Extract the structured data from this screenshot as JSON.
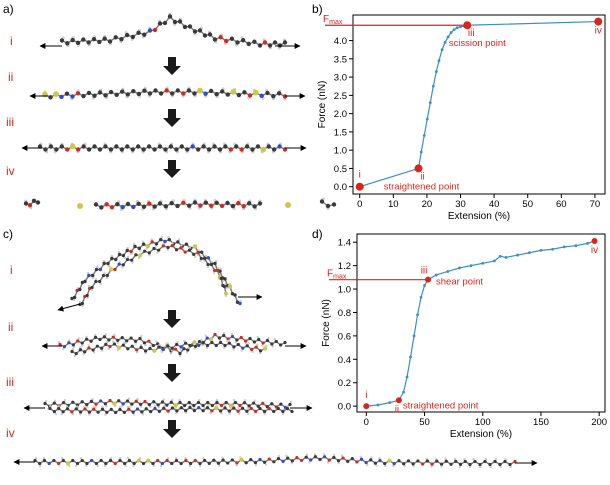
{
  "panels": {
    "a": "a)",
    "b": "b)",
    "c": "c)",
    "d": "d)"
  },
  "steps": [
    "i",
    "ii",
    "iii",
    "iv"
  ],
  "colors": {
    "carbon": "#3a3a3a",
    "hydrogen": "#d8d8d8",
    "oxygen": "#d22a1e",
    "nitrogen": "#2f4bd0",
    "sulfur": "#c9c94a",
    "curve": "#3b8ec6",
    "annotation": "#d9261c",
    "arrow_fill": "#1a1a1a"
  },
  "chart_data": [
    {
      "id": "b",
      "type": "line",
      "title": "",
      "xlabel": "Extension (%)",
      "ylabel": "Force (nN)",
      "xlim": [
        -2,
        73
      ],
      "ylim": [
        -0.2,
        4.7
      ],
      "xticks": [
        0,
        10,
        20,
        30,
        40,
        50,
        60,
        70
      ],
      "yticks": [
        0.0,
        0.5,
        1.0,
        1.5,
        2.0,
        2.5,
        3.0,
        3.5,
        4.0
      ],
      "x": [
        0,
        17.5,
        18.3,
        19.2,
        20.1,
        21.0,
        21.9,
        22.8,
        23.6,
        24.5,
        25.4,
        26.3,
        27.2,
        28.1,
        29.0,
        30.0,
        31,
        32,
        71
      ],
      "y": [
        0,
        0.5,
        0.95,
        1.4,
        1.85,
        2.3,
        2.75,
        3.15,
        3.45,
        3.75,
        3.95,
        4.1,
        4.22,
        4.3,
        4.35,
        4.38,
        4.4,
        4.42,
        4.52
      ],
      "fmax_label": "F",
      "fmax_sub": "max",
      "fmax_value": 4.42,
      "points": [
        {
          "roman": "i",
          "x": 0,
          "y": 0,
          "text": ""
        },
        {
          "roman": "ii",
          "x": 17.5,
          "y": 0.5,
          "text": "straightened point"
        },
        {
          "roman": "iii",
          "x": 32,
          "y": 4.42,
          "text": "scission point"
        },
        {
          "roman": "iv",
          "x": 71,
          "y": 4.52,
          "text": ""
        }
      ]
    },
    {
      "id": "d",
      "type": "line",
      "title": "",
      "xlabel": "Extension (%)",
      "ylabel": "Force (nN)",
      "xlim": [
        -8,
        205
      ],
      "ylim": [
        -0.05,
        1.47
      ],
      "xticks": [
        0,
        50,
        100,
        150,
        200
      ],
      "yticks": [
        0.0,
        0.2,
        0.4,
        0.6,
        0.8,
        1.0,
        1.2,
        1.4
      ],
      "x": [
        0,
        10,
        20,
        28,
        32,
        35,
        38,
        41,
        44,
        47,
        50,
        53,
        60,
        70,
        80,
        90,
        100,
        110,
        115,
        120,
        130,
        140,
        150,
        160,
        170,
        180,
        190,
        196
      ],
      "y": [
        0,
        0.01,
        0.03,
        0.05,
        0.12,
        0.25,
        0.42,
        0.6,
        0.78,
        0.93,
        1.03,
        1.08,
        1.12,
        1.15,
        1.18,
        1.2,
        1.22,
        1.24,
        1.28,
        1.27,
        1.29,
        1.31,
        1.33,
        1.34,
        1.36,
        1.37,
        1.39,
        1.41
      ],
      "fmax_label": "F",
      "fmax_sub": "max",
      "fmax_value": 1.08,
      "points": [
        {
          "roman": "i",
          "x": 0,
          "y": 0,
          "text": ""
        },
        {
          "roman": "ii",
          "x": 28,
          "y": 0.05,
          "text": "straightened point"
        },
        {
          "roman": "iii",
          "x": 53,
          "y": 1.08,
          "text": "shear point"
        },
        {
          "roman": "iv",
          "x": 196,
          "y": 1.41,
          "text": ""
        }
      ]
    }
  ]
}
